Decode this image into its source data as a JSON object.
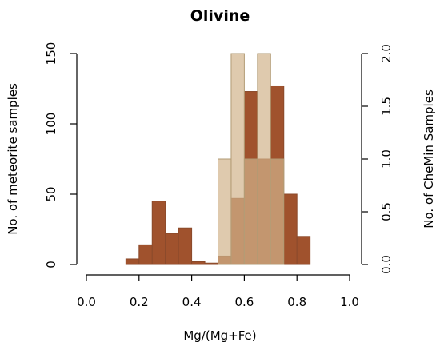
{
  "chart_data": {
    "type": "bar",
    "title": "Olivine",
    "xlabel": "Mg/(Mg+Fe)",
    "ylabel": "No. of meteorite samples",
    "y2label": "No. of CheMin Samples",
    "xlim": [
      0.0,
      1.0
    ],
    "ylim": [
      0,
      150
    ],
    "y2lim": [
      0,
      2.0
    ],
    "x_ticks": [
      "0.0",
      "0.2",
      "0.4",
      "0.6",
      "0.8",
      "1.0"
    ],
    "y_ticks": [
      "0",
      "50",
      "100",
      "150"
    ],
    "y2_ticks": [
      "0.0",
      "0.5",
      "1.0",
      "1.5",
      "2.0"
    ],
    "grid": false,
    "series": [
      {
        "color": "#a0522d",
        "axis": "left",
        "bins": [
          {
            "x0": 0.15,
            "x1": 0.2,
            "value": 4
          },
          {
            "x0": 0.2,
            "x1": 0.25,
            "value": 14
          },
          {
            "x0": 0.25,
            "x1": 0.3,
            "value": 45
          },
          {
            "x0": 0.3,
            "x1": 0.35,
            "value": 22
          },
          {
            "x0": 0.35,
            "x1": 0.4,
            "value": 26
          },
          {
            "x0": 0.4,
            "x1": 0.45,
            "value": 2
          },
          {
            "x0": 0.45,
            "x1": 0.5,
            "value": 1
          },
          {
            "x0": 0.5,
            "x1": 0.55,
            "value": 6
          },
          {
            "x0": 0.55,
            "x1": 0.6,
            "value": 47
          },
          {
            "x0": 0.6,
            "x1": 0.65,
            "value": 123
          },
          {
            "x0": 0.65,
            "x1": 0.7,
            "value": 75
          },
          {
            "x0": 0.7,
            "x1": 0.75,
            "value": 127
          },
          {
            "x0": 0.75,
            "x1": 0.8,
            "value": 50
          },
          {
            "x0": 0.8,
            "x1": 0.85,
            "value": 20
          }
        ]
      },
      {
        "color": "#d2b48c",
        "axis": "right",
        "bins": [
          {
            "x0": 0.5,
            "x1": 0.55,
            "value": 1.0
          },
          {
            "x0": 0.55,
            "x1": 0.6,
            "value": 2.0
          },
          {
            "x0": 0.6,
            "x1": 0.65,
            "value": 1.0
          },
          {
            "x0": 0.65,
            "x1": 0.7,
            "value": 2.0
          },
          {
            "x0": 0.7,
            "x1": 0.75,
            "value": 1.0
          }
        ]
      }
    ]
  }
}
